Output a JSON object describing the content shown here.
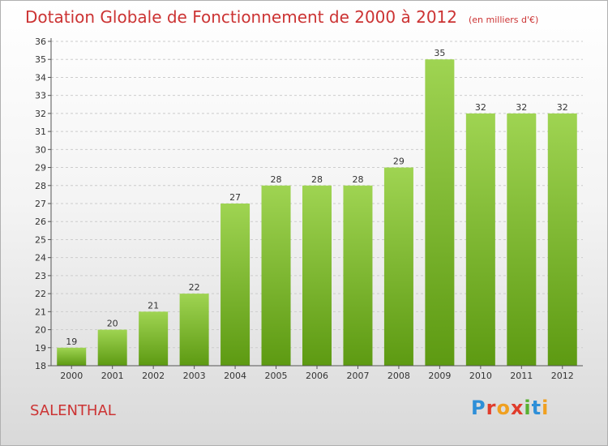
{
  "title": "Dotation Globale de Fonctionnement de 2000 à 2012",
  "subtitle": "(en milliers d'€)",
  "location": "SALENTHAL",
  "logo": {
    "text": "Proxiti",
    "icon": "proxiti-logo"
  },
  "colors": {
    "bar_light": "#9fd452",
    "bar_dark": "#5d9a12",
    "title": "#cc3333",
    "axis": "#555555",
    "grid": "#cccccc"
  },
  "chart_data": {
    "type": "bar",
    "categories": [
      "2000",
      "2001",
      "2002",
      "2003",
      "2004",
      "2005",
      "2006",
      "2007",
      "2008",
      "2009",
      "2010",
      "2011",
      "2012"
    ],
    "values": [
      19,
      20,
      21,
      22,
      27,
      28,
      28,
      28,
      29,
      35,
      32,
      32,
      32
    ],
    "title": "Dotation Globale de Fonctionnement de 2000 à 2012",
    "xlabel": "",
    "ylabel": "",
    "ylim": [
      18,
      36
    ],
    "ytick_step": 1,
    "grid": true,
    "legend": "none"
  }
}
